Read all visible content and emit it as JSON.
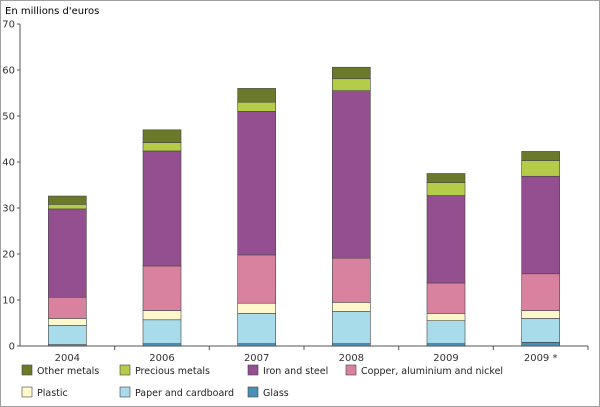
{
  "chart_data": {
    "type": "bar",
    "stacked": true,
    "ylabel": "En millions d'euros",
    "ylim": [
      0,
      70
    ],
    "yticks": [
      0,
      10,
      20,
      30,
      40,
      50,
      60,
      70
    ],
    "grid": false,
    "legend_position": "bottom",
    "categories": [
      "2004",
      "2006",
      "2007",
      "2008",
      "2009",
      "2009 *"
    ],
    "series": [
      {
        "name": "Glass",
        "color": "#4a8fb5",
        "values": [
          0.3,
          0.5,
          0.5,
          0.5,
          0.5,
          0.8
        ]
      },
      {
        "name": "Paper and cardboard",
        "color": "#a9dcea",
        "values": [
          4.2,
          5.2,
          6.6,
          7.0,
          5.0,
          5.2
        ]
      },
      {
        "name": "Plastic",
        "color": "#fff8cc",
        "values": [
          1.5,
          2.0,
          2.2,
          2.0,
          1.6,
          1.7
        ]
      },
      {
        "name": "Copper, aluminium and nickel",
        "color": "#d9829f",
        "values": [
          4.6,
          9.7,
          10.5,
          9.6,
          6.6,
          8.0
        ]
      },
      {
        "name": "Iron and steel",
        "color": "#944f91",
        "values": [
          19.2,
          25.0,
          31.2,
          36.4,
          19.0,
          21.2
        ]
      },
      {
        "name": "Precious metals",
        "color": "#b5cc4a",
        "values": [
          1.0,
          1.8,
          2.0,
          2.6,
          2.8,
          3.4
        ]
      },
      {
        "name": "Other metals",
        "color": "#6b7a2a",
        "values": [
          1.8,
          2.8,
          3.0,
          2.5,
          2.0,
          2.0
        ]
      }
    ]
  },
  "legend_order": [
    "Other metals",
    "Precious metals",
    "Iron and steel",
    "Copper, aluminium and nickel",
    "Plastic",
    "Paper and cardboard",
    "Glass"
  ]
}
